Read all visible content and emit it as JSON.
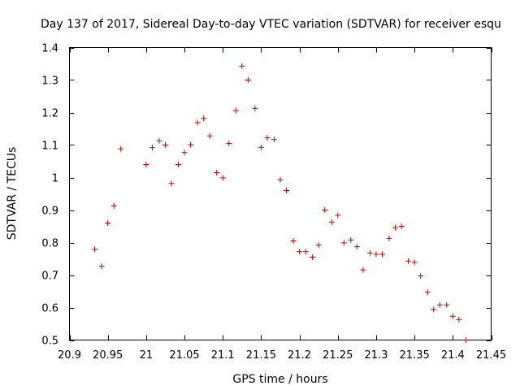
{
  "chart_data": {
    "type": "scatter",
    "title": "Day 137 of 2017, Sidereal Day-to-day VTEC variation (SDTVAR) for receiver esqu",
    "xlabel": "GPS time / hours",
    "ylabel": "SDTVAR / TECUs",
    "xlim": [
      20.9,
      21.45
    ],
    "ylim": [
      0.5,
      1.4
    ],
    "xticks": [
      20.9,
      20.95,
      21,
      21.05,
      21.1,
      21.15,
      21.2,
      21.25,
      21.3,
      21.35,
      21.4,
      21.45
    ],
    "xtick_labels": [
      "20.9",
      "20.95",
      "21",
      "21.05",
      "21.1",
      "21.15",
      "21.2",
      "21.25",
      "21.3",
      "21.35",
      "21.4",
      "21.45"
    ],
    "yticks": [
      0.5,
      0.6,
      0.7,
      0.8,
      0.9,
      1.0,
      1.1,
      1.2,
      1.3,
      1.4
    ],
    "ytick_labels": [
      "0.5",
      "0.6",
      "0.7",
      "0.8",
      "0.9",
      "1",
      "1.1",
      "1.2",
      "1.3",
      "1.4"
    ],
    "marker": "+",
    "color": "#cc0000",
    "series": [
      {
        "name": "SDTVAR",
        "points": [
          [
            20.933,
            0.779
          ],
          [
            20.942,
            0.727
          ],
          [
            20.95,
            0.86
          ],
          [
            20.958,
            0.913
          ],
          [
            20.967,
            1.088
          ],
          [
            21.0,
            1.04
          ],
          [
            21.008,
            1.092
          ],
          [
            21.017,
            1.113
          ],
          [
            21.025,
            1.1
          ],
          [
            21.033,
            0.982
          ],
          [
            21.042,
            1.04
          ],
          [
            21.05,
            1.077
          ],
          [
            21.058,
            1.101
          ],
          [
            21.067,
            1.169
          ],
          [
            21.075,
            1.182
          ],
          [
            21.083,
            1.128
          ],
          [
            21.092,
            1.015
          ],
          [
            21.1,
            0.999
          ],
          [
            21.108,
            1.105
          ],
          [
            21.117,
            1.206
          ],
          [
            21.125,
            1.343
          ],
          [
            21.133,
            1.3
          ],
          [
            21.142,
            1.213
          ],
          [
            21.15,
            1.093
          ],
          [
            21.158,
            1.122
          ],
          [
            21.167,
            1.117
          ],
          [
            21.175,
            0.993
          ],
          [
            21.183,
            0.96
          ],
          [
            21.192,
            0.805
          ],
          [
            21.2,
            0.772
          ],
          [
            21.208,
            0.772
          ],
          [
            21.217,
            0.755
          ],
          [
            21.225,
            0.792
          ],
          [
            21.233,
            0.9
          ],
          [
            21.242,
            0.863
          ],
          [
            21.25,
            0.884
          ],
          [
            21.258,
            0.799
          ],
          [
            21.267,
            0.808
          ],
          [
            21.275,
            0.787
          ],
          [
            21.283,
            0.716
          ],
          [
            21.292,
            0.768
          ],
          [
            21.3,
            0.764
          ],
          [
            21.308,
            0.764
          ],
          [
            21.317,
            0.813
          ],
          [
            21.325,
            0.846
          ],
          [
            21.333,
            0.85
          ],
          [
            21.342,
            0.743
          ],
          [
            21.35,
            0.739
          ],
          [
            21.358,
            0.697
          ],
          [
            21.367,
            0.647
          ],
          [
            21.375,
            0.594
          ],
          [
            21.383,
            0.608
          ],
          [
            21.392,
            0.608
          ],
          [
            21.4,
            0.573
          ],
          [
            21.408,
            0.563
          ],
          [
            21.417,
            0.5
          ]
        ]
      }
    ]
  }
}
